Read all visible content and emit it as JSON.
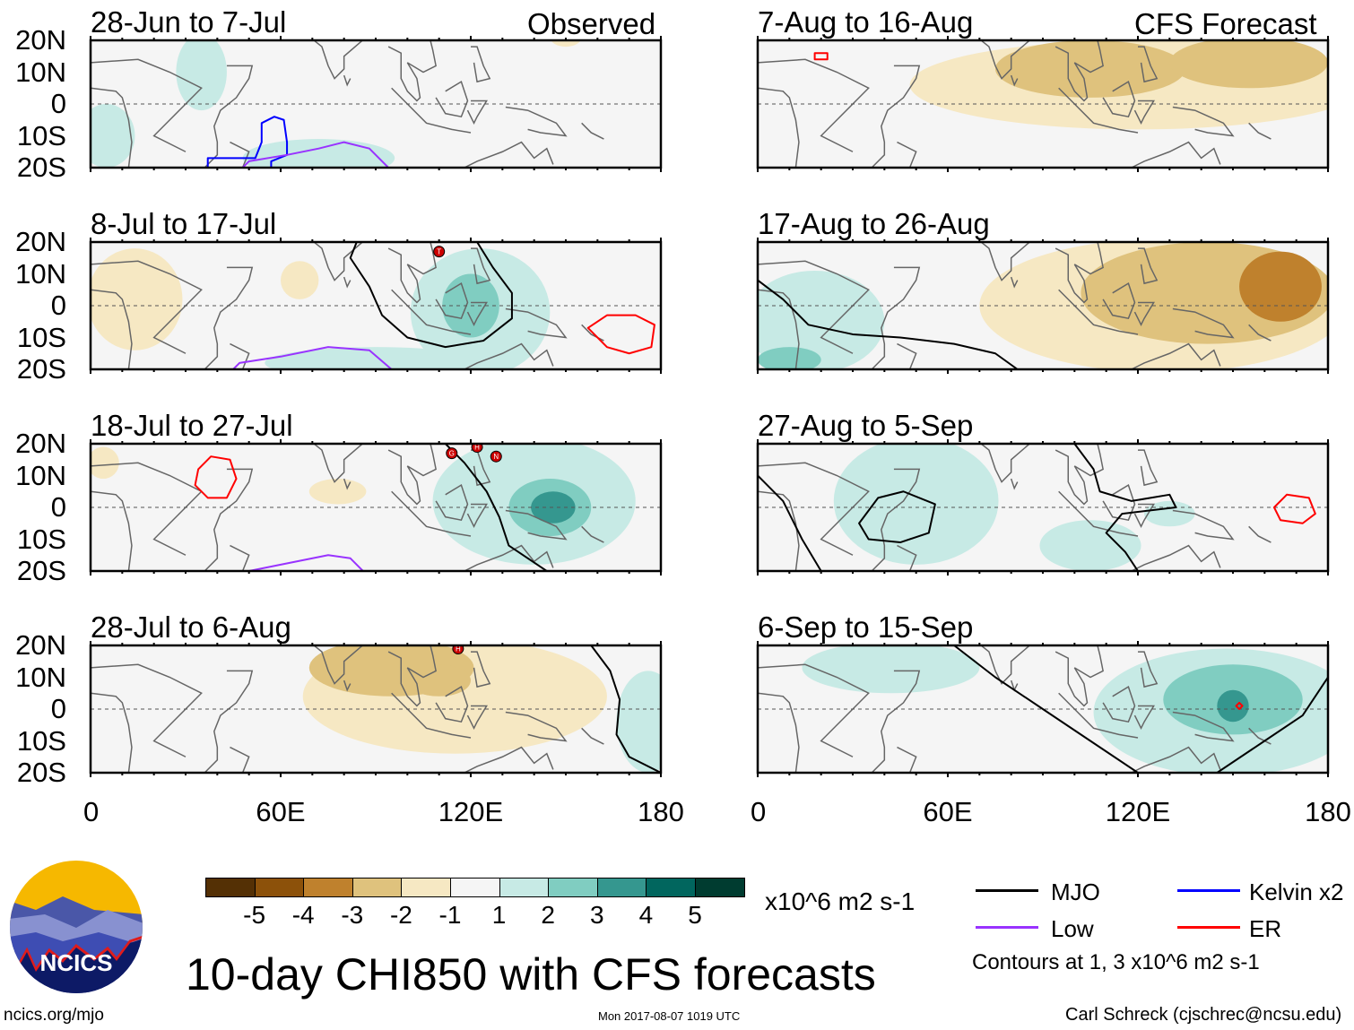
{
  "figure": {
    "title": "10-day CHI850 with CFS forecasts",
    "url": "ncics.org/mjo",
    "timestamp": "Mon 2017-08-07 1019 UTC",
    "author": "Carl Schreck (cjschrec@ncsu.edu)",
    "logo_text": "NCICS"
  },
  "headers": {
    "left": "Observed",
    "right": "CFS Forecast"
  },
  "legend": {
    "units": "x10^6 m2 s-1",
    "contours_note": "Contours at 1, 3 x10^6 m2 s-1",
    "lines": [
      {
        "label": "MJO",
        "color": "#000000"
      },
      {
        "label": "Kelvin x2",
        "color": "#0000ff"
      },
      {
        "label": "Low",
        "color": "#9933ff"
      },
      {
        "label": "ER",
        "color": "#ff0000"
      }
    ],
    "colorbar": {
      "labels": [
        "-5",
        "-4",
        "-3",
        "-2",
        "-1",
        "1",
        "2",
        "3",
        "4",
        "5"
      ],
      "colors": [
        "#543005",
        "#8c510a",
        "#bf812d",
        "#dfc27d",
        "#f6e8c3",
        "#f5f5f5",
        "#c7eae5",
        "#80cdc1",
        "#35978f",
        "#01665e",
        "#003c30"
      ]
    }
  },
  "chart_data": {
    "type": "heatmap",
    "xlim": [
      0,
      180
    ],
    "ylim": [
      -20,
      20
    ],
    "xticks": [
      "0",
      "60E",
      "120E",
      "180"
    ],
    "yticks": [
      "20N",
      "10N",
      "0",
      "10S",
      "20S"
    ],
    "panels": [
      {
        "title": "28-Jun to 7-Jul",
        "column": "Observed",
        "regions": [
          {
            "lon": 35,
            "lat": 10,
            "rlon": 8,
            "rlat": 12,
            "v": 1
          },
          {
            "lon": 5,
            "lat": -10,
            "rlon": 9,
            "rlat": 10,
            "v": 1
          },
          {
            "lon": 72,
            "lat": -17,
            "rlon": 24,
            "rlat": 6,
            "v": 1
          },
          {
            "lon": 150,
            "lat": 21,
            "rlon": 5,
            "rlat": 3,
            "v": -1
          }
        ],
        "contours": [
          {
            "type": "Kelvin x2",
            "closed": false,
            "pts": [
              [
                37,
                -20
              ],
              [
                37,
                -17
              ],
              [
                52,
                -17
              ],
              [
                54,
                -12
              ],
              [
                54,
                -6
              ],
              [
                58,
                -4
              ],
              [
                61,
                -5
              ],
              [
                62,
                -12
              ],
              [
                62,
                -16
              ],
              [
                57,
                -18
              ],
              [
                57,
                -20
              ]
            ]
          },
          {
            "type": "Low",
            "closed": false,
            "pts": [
              [
                48,
                -20
              ],
              [
                50,
                -18
              ],
              [
                62,
                -16
              ],
              [
                72,
                -14
              ],
              [
                80,
                -12
              ],
              [
                88,
                -14
              ],
              [
                94,
                -20
              ]
            ]
          }
        ],
        "storms": []
      },
      {
        "title": "8-Jul to 17-Jul",
        "column": "Observed",
        "regions": [
          {
            "lon": 14,
            "lat": 2,
            "rlon": 15,
            "rlat": 16,
            "v": -1
          },
          {
            "lon": 66,
            "lat": 8,
            "rlon": 6,
            "rlat": 6,
            "v": -1
          },
          {
            "lon": 123,
            "lat": -2,
            "rlon": 22,
            "rlat": 20,
            "v": 1
          },
          {
            "lon": 90,
            "lat": -18,
            "rlon": 35,
            "rlat": 5,
            "v": 1
          },
          {
            "lon": 120,
            "lat": 0,
            "rlon": 9,
            "rlat": 10,
            "v": 2
          }
        ],
        "contours": [
          {
            "type": "MJO",
            "closed": false,
            "pts": [
              [
                84,
                20
              ],
              [
                82,
                15
              ],
              [
                88,
                6
              ],
              [
                92,
                -3
              ],
              [
                100,
                -10
              ],
              [
                112,
                -13
              ],
              [
                124,
                -11
              ],
              [
                133,
                -4
              ],
              [
                133,
                4
              ],
              [
                127,
                12
              ],
              [
                122,
                20
              ]
            ]
          },
          {
            "type": "ER",
            "closed": true,
            "pts": [
              [
                157,
                -7
              ],
              [
                163,
                -3
              ],
              [
                172,
                -3
              ],
              [
                178,
                -6
              ],
              [
                177,
                -13
              ],
              [
                170,
                -15
              ],
              [
                163,
                -13
              ]
            ]
          },
          {
            "type": "Low",
            "closed": false,
            "pts": [
              [
                45,
                -20
              ],
              [
                47,
                -18
              ],
              [
                60,
                -16
              ],
              [
                75,
                -13
              ],
              [
                88,
                -14
              ],
              [
                95,
                -20
              ]
            ]
          }
        ],
        "storms": [
          {
            "lon": 110,
            "lat": 17,
            "label": "T"
          }
        ]
      },
      {
        "title": "18-Jul to 27-Jul",
        "column": "Observed",
        "regions": [
          {
            "lon": 4,
            "lat": 14,
            "rlon": 5,
            "rlat": 5,
            "v": -1
          },
          {
            "lon": 78,
            "lat": 5,
            "rlon": 9,
            "rlat": 4,
            "v": -1
          },
          {
            "lon": 140,
            "lat": 2,
            "rlon": 32,
            "rlat": 20,
            "v": 1
          },
          {
            "lon": 145,
            "lat": 0,
            "rlon": 13,
            "rlat": 9,
            "v": 2
          },
          {
            "lon": 146,
            "lat": 0,
            "rlon": 7,
            "rlat": 5,
            "v": 3
          }
        ],
        "contours": [
          {
            "type": "MJO",
            "closed": false,
            "pts": [
              [
                112,
                20
              ],
              [
                118,
                14
              ],
              [
                125,
                5
              ],
              [
                129,
                -3
              ],
              [
                132,
                -12
              ],
              [
                144,
                -20
              ]
            ]
          },
          {
            "type": "ER",
            "closed": true,
            "pts": [
              [
                34,
                12
              ],
              [
                38,
                16
              ],
              [
                44,
                15
              ],
              [
                46,
                9
              ],
              [
                43,
                3
              ],
              [
                37,
                3
              ],
              [
                33,
                7
              ]
            ]
          },
          {
            "type": "Low",
            "closed": false,
            "pts": [
              [
                50,
                -20
              ],
              [
                60,
                -18
              ],
              [
                75,
                -15
              ],
              [
                82,
                -16
              ],
              [
                86,
                -20
              ]
            ]
          }
        ],
        "storms": [
          {
            "lon": 114,
            "lat": 17,
            "label": "G"
          },
          {
            "lon": 122,
            "lat": 19,
            "label": "H"
          },
          {
            "lon": 128,
            "lat": 16,
            "label": "N"
          }
        ]
      },
      {
        "title": "28-Jul to 6-Aug",
        "column": "Observed",
        "regions": [
          {
            "lon": 115,
            "lat": 4,
            "rlon": 48,
            "rlat": 18,
            "v": -1
          },
          {
            "lon": 95,
            "lat": 13,
            "rlon": 26,
            "rlat": 9,
            "v": -2
          },
          {
            "lon": 110,
            "lat": 9,
            "rlon": 10,
            "rlat": 5,
            "v": -2
          },
          {
            "lon": 176,
            "lat": -4,
            "rlon": 10,
            "rlat": 16,
            "v": 1
          }
        ],
        "contours": [
          {
            "type": "MJO",
            "closed": false,
            "pts": [
              [
                158,
                20
              ],
              [
                164,
                12
              ],
              [
                167,
                3
              ],
              [
                166,
                -8
              ],
              [
                170,
                -15
              ],
              [
                180,
                -20
              ]
            ]
          }
        ],
        "storms": [
          {
            "lon": 116,
            "lat": 19,
            "label": "H"
          }
        ]
      },
      {
        "title": "7-Aug to 16-Aug",
        "column": "CFS Forecast",
        "regions": [
          {
            "lon": 120,
            "lat": 6,
            "rlon": 72,
            "rlat": 14,
            "v": -1
          },
          {
            "lon": 105,
            "lat": 11,
            "rlon": 30,
            "rlat": 9,
            "v": -2
          },
          {
            "lon": 155,
            "lat": 13,
            "rlon": 25,
            "rlat": 8,
            "v": -2
          }
        ],
        "contours": [
          {
            "type": "ER",
            "closed": true,
            "pts": [
              [
                18,
                16
              ],
              [
                22,
                16
              ],
              [
                22,
                14
              ],
              [
                18,
                14
              ]
            ]
          }
        ],
        "storms": []
      },
      {
        "title": "17-Aug to 26-Aug",
        "column": "CFS Forecast",
        "regions": [
          {
            "lon": 128,
            "lat": 0,
            "rlon": 58,
            "rlat": 21,
            "v": -1
          },
          {
            "lon": 142,
            "lat": 4,
            "rlon": 40,
            "rlat": 16,
            "v": -2
          },
          {
            "lon": 165,
            "lat": 6,
            "rlon": 13,
            "rlat": 11,
            "v": -3
          },
          {
            "lon": 18,
            "lat": -5,
            "rlon": 22,
            "rlat": 16,
            "v": 1
          },
          {
            "lon": 10,
            "lat": -17,
            "rlon": 10,
            "rlat": 4,
            "v": 2
          }
        ],
        "contours": [
          {
            "type": "MJO",
            "closed": false,
            "pts": [
              [
                0,
                8
              ],
              [
                8,
                2
              ],
              [
                16,
                -6
              ],
              [
                30,
                -9
              ],
              [
                45,
                -10
              ],
              [
                62,
                -12
              ],
              [
                75,
                -15
              ],
              [
                82,
                -20
              ]
            ]
          }
        ],
        "storms": []
      },
      {
        "title": "27-Aug to 5-Sep",
        "column": "CFS Forecast",
        "regions": [
          {
            "lon": 50,
            "lat": 2,
            "rlon": 26,
            "rlat": 20,
            "v": 1
          },
          {
            "lon": 105,
            "lat": -12,
            "rlon": 16,
            "rlat": 8,
            "v": 1
          },
          {
            "lon": 130,
            "lat": -2,
            "rlon": 8,
            "rlat": 4,
            "v": 1
          }
        ],
        "contours": [
          {
            "type": "MJO",
            "closed": true,
            "pts": [
              [
                32,
                -5
              ],
              [
                38,
                3
              ],
              [
                46,
                5
              ],
              [
                56,
                1
              ],
              [
                54,
                -8
              ],
              [
                45,
                -11
              ],
              [
                35,
                -10
              ]
            ]
          },
          {
            "type": "MJO",
            "closed": false,
            "pts": [
              [
                0,
                10
              ],
              [
                8,
                2
              ],
              [
                14,
                -10
              ],
              [
                20,
                -20
              ]
            ]
          },
          {
            "type": "MJO",
            "closed": false,
            "pts": [
              [
                100,
                20
              ],
              [
                106,
                12
              ],
              [
                108,
                5
              ],
              [
                118,
                2
              ],
              [
                130,
                4
              ],
              [
                132,
                0
              ],
              [
                115,
                -2
              ],
              [
                110,
                -8
              ],
              [
                116,
                -14
              ],
              [
                120,
                -20
              ]
            ]
          },
          {
            "type": "ER",
            "closed": true,
            "pts": [
              [
                163,
                0
              ],
              [
                167,
                4
              ],
              [
                174,
                3
              ],
              [
                176,
                -2
              ],
              [
                172,
                -5
              ],
              [
                165,
                -4
              ]
            ]
          }
        ],
        "storms": []
      },
      {
        "title": "6-Sep to 15-Sep",
        "column": "CFS Forecast",
        "regions": [
          {
            "lon": 148,
            "lat": -1,
            "rlon": 42,
            "rlat": 20,
            "v": 1
          },
          {
            "lon": 42,
            "lat": 13,
            "rlon": 28,
            "rlat": 8,
            "v": 1
          },
          {
            "lon": 150,
            "lat": 3,
            "rlon": 22,
            "rlat": 11,
            "v": 2
          },
          {
            "lon": 150,
            "lat": 1,
            "rlon": 5,
            "rlat": 5,
            "v": 3
          }
        ],
        "contours": [
          {
            "type": "MJO",
            "closed": false,
            "pts": [
              [
                62,
                20
              ],
              [
                75,
                10
              ],
              [
                90,
                0
              ],
              [
                105,
                -10
              ],
              [
                120,
                -20
              ]
            ]
          },
          {
            "type": "MJO",
            "closed": false,
            "pts": [
              [
                145,
                -20
              ],
              [
                160,
                -10
              ],
              [
                172,
                -2
              ],
              [
                180,
                10
              ]
            ]
          },
          {
            "type": "ER",
            "closed": true,
            "pts": [
              [
                152,
                2
              ],
              [
                153,
                1
              ],
              [
                152,
                0
              ],
              [
                151,
                1
              ]
            ]
          }
        ],
        "storms": []
      }
    ]
  }
}
